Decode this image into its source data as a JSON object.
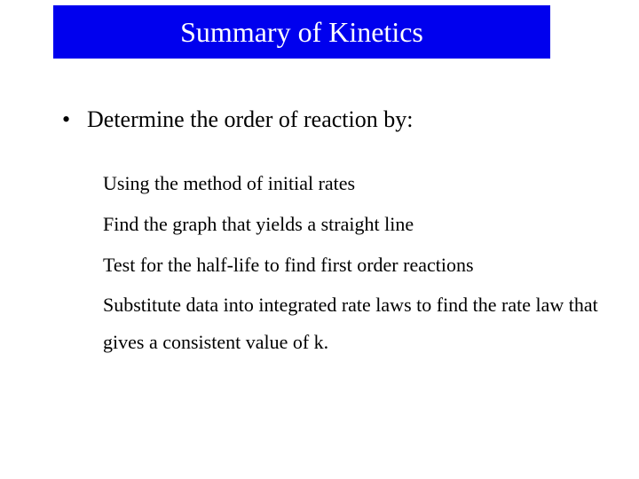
{
  "title": {
    "text": "Summary of Kinetics",
    "background_color": "#0000ee",
    "text_color": "#ffffff",
    "fontsize": 32
  },
  "bullet": {
    "marker": "•",
    "text": "Determine the order of reaction by:",
    "fontsize": 26
  },
  "sub_items": [
    "Using the method of initial rates",
    "Find the graph that yields a straight line",
    "Test for the half-life to find first order reactions",
    "Substitute data into integrated rate laws to find the rate law that gives a consistent value of  k."
  ],
  "sub_fontsize": 22,
  "background_color": "#ffffff",
  "text_color": "#000000"
}
